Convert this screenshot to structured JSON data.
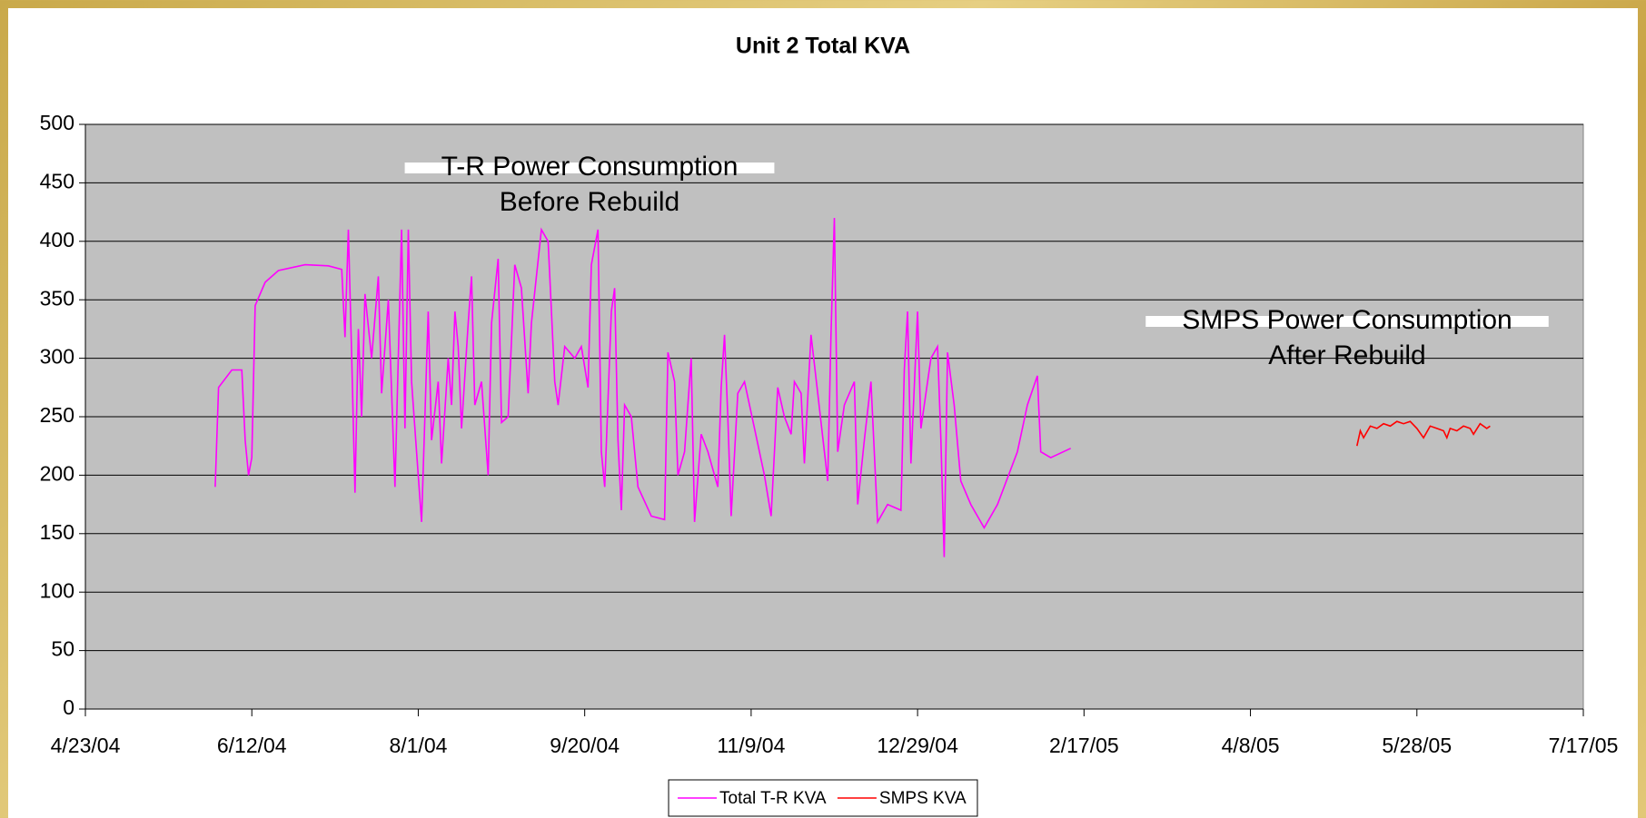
{
  "chart_data": {
    "type": "line",
    "title": "Unit 2 Total KVA",
    "annotations": [
      [
        "T-R Power Consumption",
        "Before Rebuild"
      ],
      [
        "SMPS Power Consumption",
        "After Rebuild"
      ]
    ],
    "xlim": [
      "2004-04-23",
      "2005-07-17"
    ],
    "xticks": [
      {
        "value": "2004-04-23",
        "label": "4/23/04"
      },
      {
        "value": "2004-06-12",
        "label": "6/12/04"
      },
      {
        "value": "2004-08-01",
        "label": "8/1/04"
      },
      {
        "value": "2004-09-20",
        "label": "9/20/04"
      },
      {
        "value": "2004-11-09",
        "label": "11/9/04"
      },
      {
        "value": "2004-12-29",
        "label": "12/29/04"
      },
      {
        "value": "2005-02-17",
        "label": "2/17/05"
      },
      {
        "value": "2005-04-08",
        "label": "4/8/05"
      },
      {
        "value": "2005-05-28",
        "label": "5/28/05"
      },
      {
        "value": "2005-07-17",
        "label": "7/17/05"
      }
    ],
    "ylim": [
      0,
      500
    ],
    "yticks": [
      0,
      50,
      100,
      150,
      200,
      250,
      300,
      350,
      400,
      450,
      500
    ],
    "grid": true,
    "legend": "bottom",
    "series": [
      {
        "name": "Total T-R KVA",
        "color": "#ff00ff",
        "x": [
          "2004-06-01",
          "2004-06-02",
          "2004-06-06",
          "2004-06-09",
          "2004-06-10",
          "2004-06-11",
          "2004-06-12",
          "2004-06-13",
          "2004-06-16",
          "2004-06-20",
          "2004-06-28",
          "2004-07-05",
          "2004-07-09",
          "2004-07-10",
          "2004-07-11",
          "2004-07-12",
          "2004-07-13",
          "2004-07-14",
          "2004-07-15",
          "2004-07-16",
          "2004-07-18",
          "2004-07-20",
          "2004-07-21",
          "2004-07-23",
          "2004-07-25",
          "2004-07-27",
          "2004-07-28",
          "2004-07-29",
          "2004-07-30",
          "2004-08-01",
          "2004-08-02",
          "2004-08-04",
          "2004-08-05",
          "2004-08-07",
          "2004-08-08",
          "2004-08-10",
          "2004-08-11",
          "2004-08-12",
          "2004-08-13",
          "2004-08-14",
          "2004-08-16",
          "2004-08-17",
          "2004-08-18",
          "2004-08-20",
          "2004-08-22",
          "2004-08-23",
          "2004-08-25",
          "2004-08-26",
          "2004-08-28",
          "2004-08-30",
          "2004-09-01",
          "2004-09-03",
          "2004-09-04",
          "2004-09-07",
          "2004-09-09",
          "2004-09-11",
          "2004-09-12",
          "2004-09-14",
          "2004-09-17",
          "2004-09-19",
          "2004-09-21",
          "2004-09-22",
          "2004-09-24",
          "2004-09-25",
          "2004-09-26",
          "2004-09-28",
          "2004-09-29",
          "2004-09-30",
          "2004-10-01",
          "2004-10-02",
          "2004-10-04",
          "2004-10-06",
          "2004-10-10",
          "2004-10-14",
          "2004-10-15",
          "2004-10-17",
          "2004-10-18",
          "2004-10-20",
          "2004-10-22",
          "2004-10-23",
          "2004-10-25",
          "2004-10-27",
          "2004-10-30",
          "2004-10-31",
          "2004-11-01",
          "2004-11-02",
          "2004-11-03",
          "2004-11-05",
          "2004-11-07",
          "2004-11-10",
          "2004-11-13",
          "2004-11-15",
          "2004-11-17",
          "2004-11-19",
          "2004-11-21",
          "2004-11-22",
          "2004-11-24",
          "2004-11-25",
          "2004-11-27",
          "2004-11-29",
          "2004-12-02",
          "2004-12-03",
          "2004-12-04",
          "2004-12-05",
          "2004-12-07",
          "2004-12-10",
          "2004-12-11",
          "2004-12-13",
          "2004-12-15",
          "2004-12-17",
          "2004-12-20",
          "2004-12-24",
          "2004-12-25",
          "2004-12-26",
          "2004-12-27",
          "2004-12-29",
          "2004-12-30",
          "2005-01-02",
          "2005-01-04",
          "2005-01-05",
          "2005-01-06",
          "2005-01-07",
          "2005-01-09",
          "2005-01-11",
          "2005-01-14",
          "2005-01-17",
          "2005-01-18",
          "2005-01-22",
          "2005-01-28",
          "2005-01-31",
          "2005-02-03",
          "2005-02-04",
          "2005-02-07",
          "2005-02-13"
        ],
        "values": [
          190,
          275,
          290,
          290,
          230,
          200,
          215,
          345,
          365,
          375,
          380,
          379,
          376,
          318,
          410,
          300,
          185,
          325,
          250,
          355,
          300,
          370,
          270,
          350,
          190,
          410,
          240,
          410,
          280,
          200,
          160,
          340,
          230,
          280,
          210,
          300,
          260,
          340,
          310,
          240,
          330,
          370,
          260,
          280,
          200,
          330,
          385,
          245,
          250,
          380,
          360,
          270,
          330,
          410,
          400,
          280,
          260,
          310,
          300,
          310,
          275,
          380,
          410,
          220,
          190,
          340,
          360,
          230,
          170,
          260,
          250,
          190,
          165,
          162,
          305,
          280,
          200,
          220,
          300,
          160,
          235,
          220,
          190,
          275,
          320,
          250,
          165,
          270,
          280,
          240,
          200,
          165,
          275,
          250,
          235,
          280,
          270,
          210,
          320,
          270,
          195,
          320,
          420,
          220,
          260,
          280,
          175,
          230,
          280,
          160,
          175,
          170,
          290,
          340,
          210,
          340,
          240,
          300,
          310,
          230,
          130,
          305,
          260,
          195,
          175,
          160,
          155,
          175,
          220,
          260,
          285,
          220,
          215,
          223
        ]
      },
      {
        "name": "SMPS KVA",
        "color": "#ff0000",
        "x": [
          "2005-05-10",
          "2005-05-11",
          "2005-05-12",
          "2005-05-14",
          "2005-05-16",
          "2005-05-18",
          "2005-05-20",
          "2005-05-22",
          "2005-05-24",
          "2005-05-26",
          "2005-05-28",
          "2005-05-30",
          "2005-06-01",
          "2005-06-03",
          "2005-06-05",
          "2005-06-06",
          "2005-06-07",
          "2005-06-09",
          "2005-06-11",
          "2005-06-13",
          "2005-06-14",
          "2005-06-16",
          "2005-06-18",
          "2005-06-19"
        ],
        "values": [
          225,
          238,
          232,
          242,
          240,
          244,
          242,
          246,
          244,
          246,
          240,
          232,
          242,
          240,
          238,
          232,
          240,
          238,
          242,
          240,
          235,
          244,
          240,
          242
        ]
      }
    ]
  }
}
